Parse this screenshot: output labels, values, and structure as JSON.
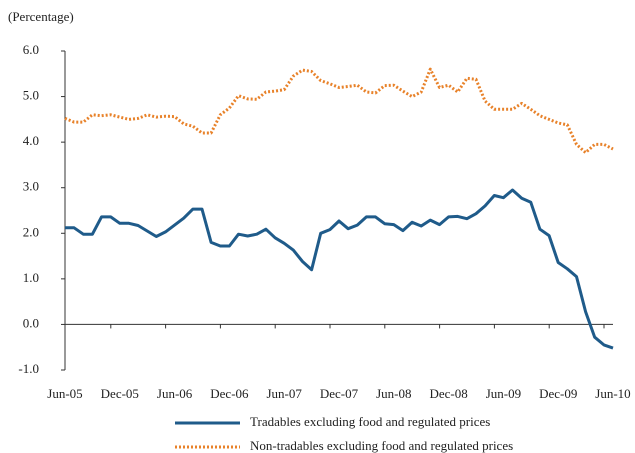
{
  "chart_data": {
    "type": "line",
    "y_label": "(Percentage)",
    "categories": [
      "Jun-05",
      null,
      null,
      null,
      null,
      null,
      "Dec-05",
      null,
      null,
      null,
      null,
      null,
      "Jun-06",
      null,
      null,
      null,
      null,
      null,
      "Dec-06",
      null,
      null,
      null,
      null,
      null,
      "Jun-07",
      null,
      null,
      null,
      null,
      null,
      "Dec-07",
      null,
      null,
      null,
      null,
      null,
      "Jun-08",
      null,
      null,
      null,
      null,
      null,
      "Dec-08",
      null,
      null,
      null,
      null,
      null,
      "Jun-09",
      null,
      null,
      null,
      null,
      null,
      "Dec-09",
      null,
      null,
      null,
      null,
      null,
      "Jun-10"
    ],
    "series": [
      {
        "name": "Tradables excluding food and regulated prices",
        "color": "#1f5b8a",
        "style": "solid",
        "values": [
          2.12,
          2.12,
          1.98,
          1.98,
          2.36,
          2.36,
          2.22,
          2.22,
          2.17,
          2.05,
          1.93,
          2.03,
          2.18,
          2.33,
          2.53,
          2.53,
          1.8,
          1.72,
          1.72,
          1.98,
          1.94,
          1.98,
          2.09,
          1.9,
          1.78,
          1.63,
          1.38,
          1.2,
          2.0,
          2.08,
          2.27,
          2.1,
          2.18,
          2.36,
          2.36,
          2.21,
          2.19,
          2.06,
          2.24,
          2.16,
          2.29,
          2.19,
          2.36,
          2.37,
          2.32,
          2.43,
          2.6,
          2.83,
          2.78,
          2.95,
          2.77,
          2.68,
          2.09,
          1.95,
          1.36,
          1.22,
          1.05,
          0.28,
          -0.28,
          -0.45,
          -0.52
        ]
      },
      {
        "name": "Non-tradables excluding food and regulated prices",
        "color": "#e8822a",
        "style": "dotted",
        "values": [
          4.52,
          4.44,
          4.44,
          4.6,
          4.58,
          4.6,
          4.55,
          4.5,
          4.52,
          4.6,
          4.55,
          4.57,
          4.56,
          4.4,
          4.35,
          4.2,
          4.2,
          4.6,
          4.75,
          5.02,
          4.95,
          4.94,
          5.1,
          5.12,
          5.15,
          5.45,
          5.58,
          5.55,
          5.35,
          5.28,
          5.2,
          5.22,
          5.25,
          5.1,
          5.08,
          5.24,
          5.25,
          5.12,
          5.0,
          5.1,
          5.6,
          5.2,
          5.25,
          5.1,
          5.4,
          5.38,
          4.9,
          4.72,
          4.72,
          4.72,
          4.85,
          4.72,
          4.58,
          4.5,
          4.42,
          4.38,
          3.95,
          3.77,
          3.95,
          3.95,
          3.85
        ]
      }
    ],
    "ylim": [
      -1,
      6
    ],
    "yticks": [
      {
        "value": -1,
        "label": "-1.0"
      },
      {
        "value": 0,
        "label": "0.0"
      },
      {
        "value": 1,
        "label": "1.0"
      },
      {
        "value": 2,
        "label": "2.0"
      },
      {
        "value": 3,
        "label": "3.0"
      },
      {
        "value": 4,
        "label": "4.0"
      },
      {
        "value": 5,
        "label": "5.0"
      },
      {
        "value": 6,
        "label": "6.0"
      }
    ],
    "legend": "bottom"
  }
}
